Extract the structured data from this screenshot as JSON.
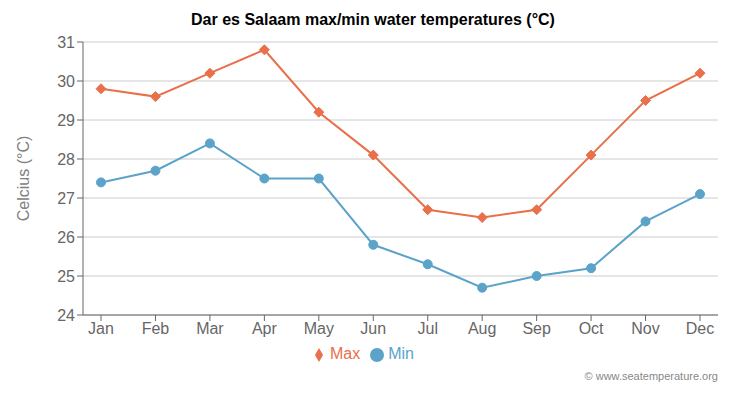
{
  "chart_data": {
    "type": "line",
    "title": "Dar es Salaam max/min water temperatures (°C)",
    "y_label": "Celcius (°C)",
    "categories": [
      "Jan",
      "Feb",
      "Mar",
      "Apr",
      "May",
      "Jun",
      "Jul",
      "Aug",
      "Sep",
      "Oct",
      "Nov",
      "Dec"
    ],
    "series": [
      {
        "name": "Max",
        "color": "#e8704a",
        "marker": "diamond",
        "values": [
          29.8,
          29.6,
          30.2,
          30.8,
          29.2,
          28.1,
          26.7,
          26.5,
          26.7,
          28.1,
          29.5,
          30.2
        ]
      },
      {
        "name": "Min",
        "color": "#5ba3c9",
        "marker": "circle",
        "values": [
          27.4,
          27.7,
          28.4,
          27.5,
          27.5,
          25.8,
          25.3,
          24.7,
          25.0,
          25.2,
          26.4,
          27.1
        ]
      }
    ],
    "ylim": [
      24,
      31
    ],
    "yticks": [
      24,
      25,
      26,
      27,
      28,
      29,
      30,
      31
    ],
    "grid": true,
    "legend": "bottom",
    "annotations": [
      "© www.seatemperature.org"
    ]
  }
}
